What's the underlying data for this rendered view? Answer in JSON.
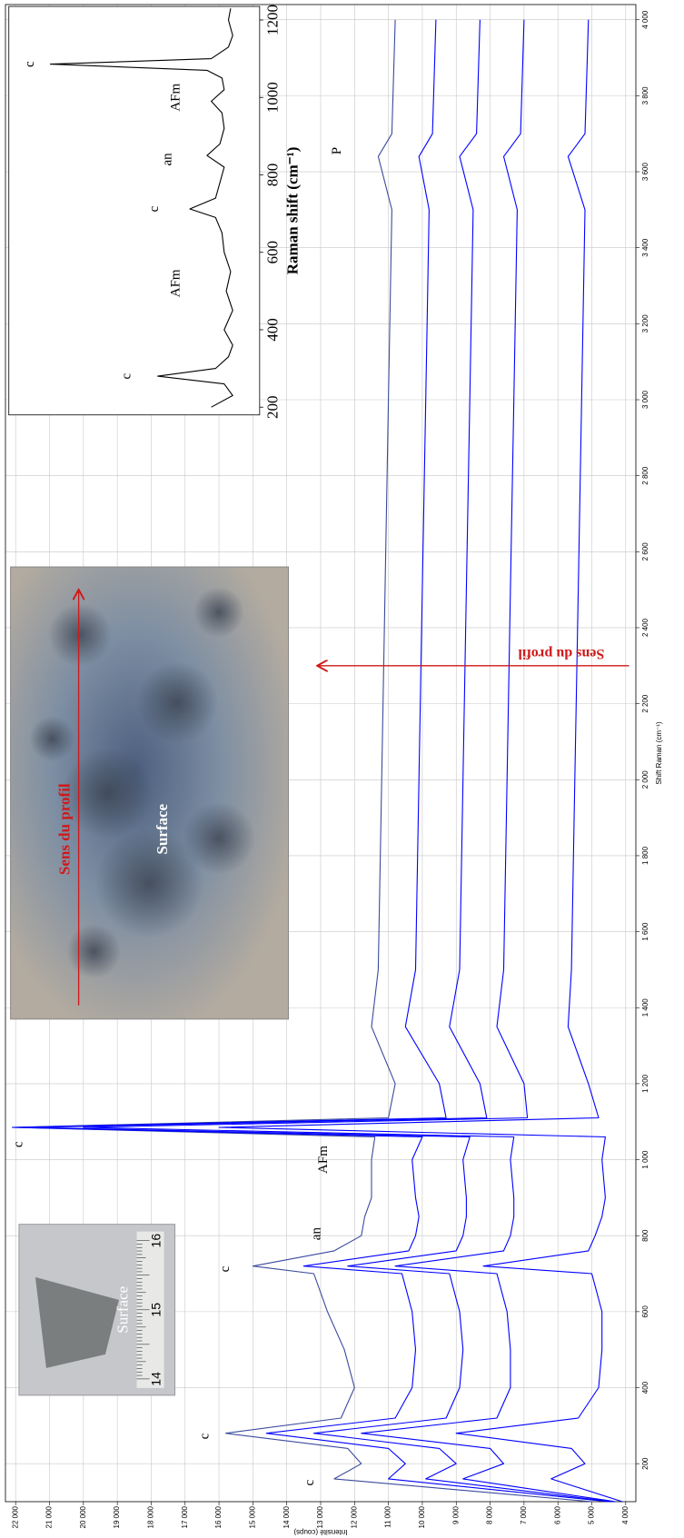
{
  "chart_data": [
    {
      "type": "line",
      "x_label": "Shift Raman (cm⁻¹)",
      "y_label": "Intensité (coups)",
      "x": [
        100,
        160,
        200,
        240,
        280,
        320,
        400,
        500,
        600,
        700,
        720,
        760,
        800,
        850,
        900,
        1000,
        1060,
        1085,
        1110,
        1200,
        1350,
        1500,
        2000,
        2500,
        3000,
        3500,
        3640,
        3700,
        4000
      ],
      "series": [
        {
          "color": "#3b4a9c",
          "values": [
            5000,
            12600,
            11800,
            12200,
            15800,
            12400,
            12000,
            12300,
            12800,
            13200,
            15000,
            12600,
            11800,
            11700,
            11500,
            11500,
            11400,
            22100,
            11000,
            10800,
            11500,
            11300,
            11200,
            11100,
            11000,
            10900,
            11300,
            10900,
            10800
          ]
        },
        {
          "color": "#0000ff",
          "values": [
            4500,
            11000,
            10500,
            11000,
            14600,
            10800,
            10300,
            10200,
            10300,
            10600,
            13500,
            10400,
            10200,
            10100,
            10200,
            10300,
            10000,
            22100,
            9300,
            9500,
            10500,
            10200,
            10100,
            10000,
            9900,
            9800,
            10100,
            9700,
            9600
          ]
        },
        {
          "color": "#0000ff",
          "values": [
            4400,
            9900,
            9000,
            9500,
            13200,
            9300,
            8900,
            8800,
            8900,
            9200,
            12200,
            9000,
            8800,
            8700,
            8700,
            8800,
            8600,
            21500,
            8100,
            8300,
            9200,
            8900,
            8800,
            8700,
            8600,
            8500,
            8900,
            8400,
            8300
          ]
        },
        {
          "color": "#0000ff",
          "values": [
            4300,
            8800,
            7600,
            8000,
            11800,
            7800,
            7400,
            7400,
            7500,
            7800,
            10800,
            7600,
            7400,
            7300,
            7300,
            7400,
            7300,
            20000,
            6900,
            7000,
            7800,
            7600,
            7500,
            7400,
            7300,
            7200,
            7600,
            7100,
            7000
          ]
        },
        {
          "color": "#0000ff",
          "values": [
            4100,
            6200,
            5200,
            5600,
            9000,
            5400,
            4800,
            4700,
            4700,
            5000,
            8200,
            5100,
            4900,
            4700,
            4600,
            4700,
            4600,
            16000,
            4800,
            5100,
            5700,
            5600,
            5500,
            5400,
            5300,
            5200,
            5700,
            5200,
            5100
          ]
        }
      ],
      "xlim": [
        100,
        4040
      ],
      "ylim": [
        3700,
        22300
      ],
      "grid": true,
      "xticks": [
        200,
        400,
        600,
        800,
        {
          "value": 1000,
          "label": "1 000"
        },
        {
          "value": 1200,
          "label": "1 200"
        },
        {
          "value": 1400,
          "label": "1 400"
        },
        {
          "value": 1600,
          "label": "1 600"
        },
        {
          "value": 1800,
          "label": "1 800"
        },
        {
          "value": 2000,
          "label": "2 000"
        },
        {
          "value": 2200,
          "label": "2 200"
        },
        {
          "value": 2400,
          "label": "2 400"
        },
        {
          "value": 2600,
          "label": "2 600"
        },
        {
          "value": 2800,
          "label": "2 800"
        },
        {
          "value": 3000,
          "label": "3 000"
        },
        {
          "value": 3200,
          "label": "3 200"
        },
        {
          "value": 3400,
          "label": "3 400"
        },
        {
          "value": 3600,
          "label": "3 600"
        },
        {
          "value": 3800,
          "label": "3 800"
        },
        {
          "value": 4000,
          "label": "4 000"
        }
      ],
      "yticks": [
        {
          "value": 4000,
          "label": "4 000"
        },
        {
          "value": 5000,
          "label": "5 000"
        },
        {
          "value": 6000,
          "label": "6 000"
        },
        {
          "value": 7000,
          "label": "7 000"
        },
        {
          "value": 8000,
          "label": "8 000"
        },
        {
          "value": 9000,
          "label": "9 000"
        },
        {
          "value": 10000,
          "label": "10 000"
        },
        {
          "value": 11000,
          "label": "11 000"
        },
        {
          "value": 12000,
          "label": "12 000"
        },
        {
          "value": 13000,
          "label": "13 000"
        },
        {
          "value": 14000,
          "label": "14 000"
        },
        {
          "value": 15000,
          "label": "15 000"
        },
        {
          "value": 16000,
          "label": "16 000"
        },
        {
          "value": 17000,
          "label": "17 000"
        },
        {
          "value": 18000,
          "label": "18 000"
        },
        {
          "value": 19000,
          "label": "19 000"
        },
        {
          "value": 20000,
          "label": "20 000"
        },
        {
          "value": 21000,
          "label": "21 000"
        },
        {
          "value": 22000,
          "label": "22 000"
        }
      ],
      "annotations": [
        "c",
        "c",
        "c",
        "an",
        "AFm",
        "c",
        "P"
      ],
      "profile_label": "Sens du profil"
    },
    {
      "type": "line",
      "x_label": "Raman shift (cm⁻¹)",
      "x": [
        200,
        230,
        260,
        280,
        300,
        330,
        360,
        400,
        450,
        500,
        550,
        600,
        650,
        690,
        712,
        740,
        780,
        820,
        850,
        880,
        920,
        960,
        990,
        1020,
        1050,
        1070,
        1086,
        1100,
        1130,
        1160,
        1200,
        1230
      ],
      "values": [
        20,
        10,
        14,
        45,
        18,
        12,
        10,
        14,
        10,
        13,
        11,
        14,
        15,
        18,
        30,
        18,
        16,
        14,
        22,
        16,
        14,
        15,
        20,
        14,
        15,
        22,
        95,
        20,
        12,
        10,
        12,
        11
      ],
      "color": "#000000",
      "xlim": [
        180,
        1235
      ],
      "ylim": [
        0,
        100
      ],
      "xticks": [
        200,
        400,
        600,
        800,
        1000,
        1200
      ],
      "annotations": [
        "c",
        "AFm",
        "c",
        "an",
        "AFm",
        "c"
      ]
    }
  ],
  "photos": {
    "sample": {
      "label": "Surface",
      "ruler": [
        "14",
        "15",
        "16"
      ]
    },
    "microscope": {
      "label": "Surface",
      "arrow_label": "Sens du profil"
    }
  }
}
